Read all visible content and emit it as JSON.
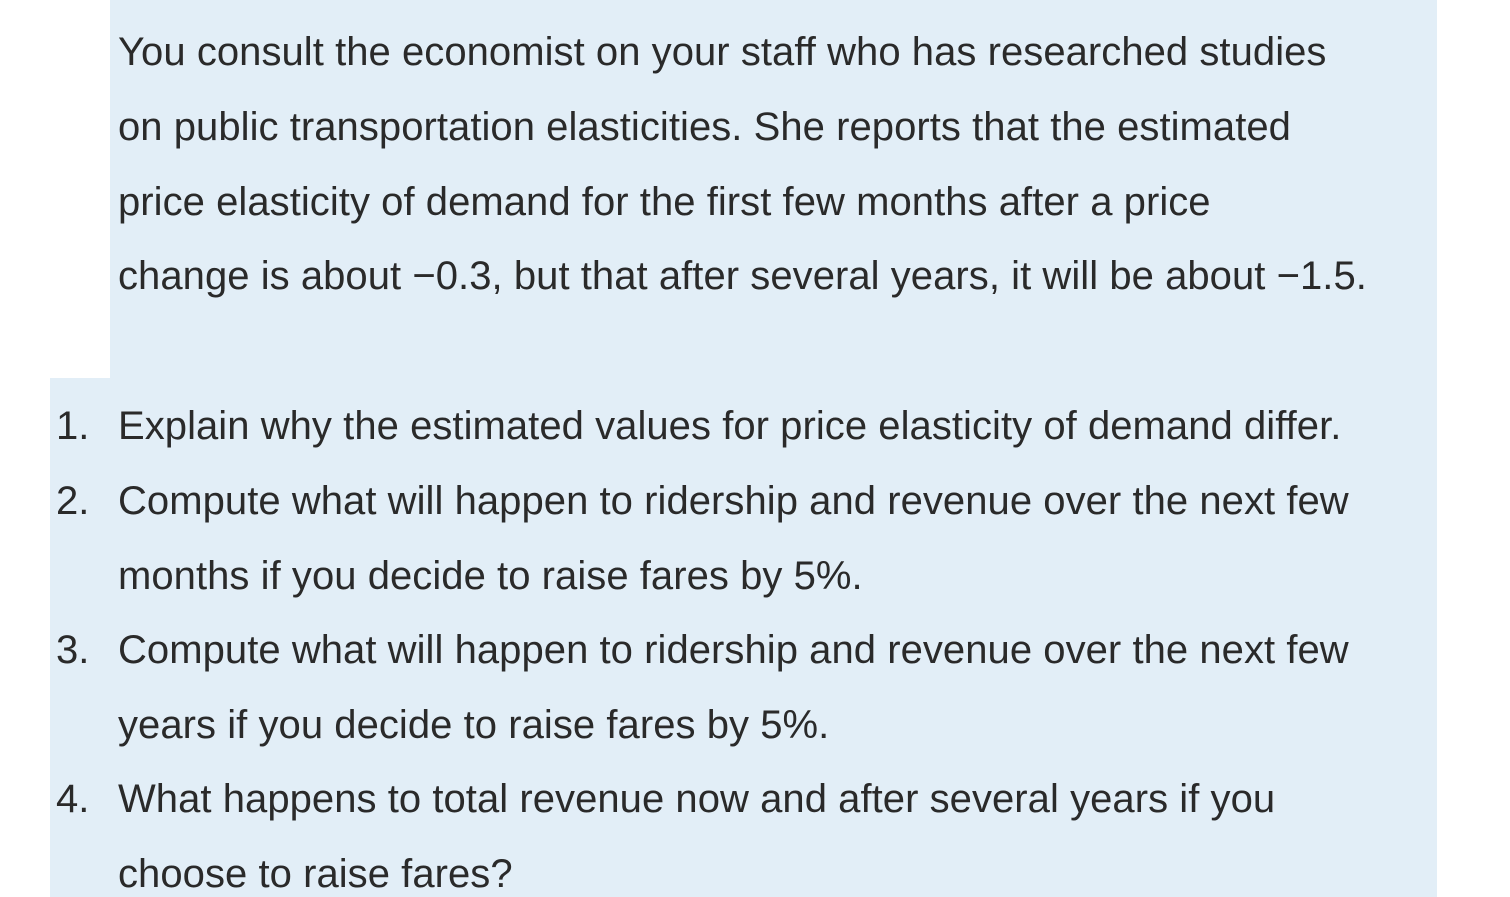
{
  "intro": {
    "lines": [
      "You consult the economist on your staff who has researched studies",
      "on public transportation elasticities. She reports that the estimated",
      "price elasticity of demand for the first few months after a price",
      "change is about −0.3, but that after several years, it will be about −1.5."
    ]
  },
  "questions": [
    {
      "number": "1.",
      "lines": [
        "Explain why the estimated values for price elasticity of demand differ."
      ]
    },
    {
      "number": "2.",
      "lines": [
        "Compute what will happen to ridership and revenue over the next few",
        "months if you decide to raise fares by 5%."
      ]
    },
    {
      "number": "3.",
      "lines": [
        "Compute what will happen to ridership and revenue over the next few",
        "years if you decide to raise fares by 5%."
      ]
    },
    {
      "number": "4.",
      "lines": [
        "What happens to total revenue now and after several years if you",
        "choose to raise fares?"
      ]
    }
  ]
}
